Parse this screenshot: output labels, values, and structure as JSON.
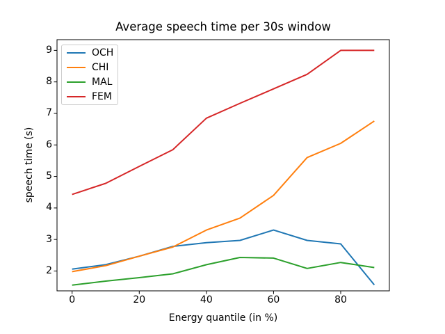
{
  "chart_data": {
    "type": "line",
    "title": "Average speech time per 30s window",
    "xlabel": "Energy quantile (in %)",
    "ylabel": "speech time (s)",
    "x": [
      0,
      10,
      20,
      30,
      40,
      50,
      60,
      70,
      80,
      90
    ],
    "series": [
      {
        "name": "OCH",
        "color": "#1f77b4",
        "values": [
          2.06,
          2.2,
          2.47,
          2.78,
          2.9,
          2.97,
          3.3,
          2.97,
          2.86,
          1.56
        ]
      },
      {
        "name": "CHI",
        "color": "#ff7f0e",
        "values": [
          1.98,
          2.17,
          2.47,
          2.76,
          3.3,
          3.68,
          4.4,
          5.6,
          6.05,
          6.76
        ]
      },
      {
        "name": "MAL",
        "color": "#2ca02c",
        "values": [
          1.55,
          1.68,
          1.79,
          1.91,
          2.2,
          2.43,
          2.41,
          2.08,
          2.27,
          2.11
        ]
      },
      {
        "name": "FEM",
        "color": "#d62728",
        "values": [
          4.43,
          4.78,
          5.32,
          5.85,
          6.85,
          7.32,
          7.78,
          8.24,
          9.0,
          9.0
        ]
      }
    ],
    "xticks": [
      0,
      20,
      40,
      60,
      80
    ],
    "yticks": [
      2,
      3,
      4,
      5,
      6,
      7,
      8,
      9
    ],
    "xlim": [
      -4.5,
      94.5
    ],
    "ylim": [
      1.37,
      9.34
    ],
    "grid": false,
    "legend_position": "upper left",
    "axis_color": "#000000",
    "spine_color": "#000000",
    "background_color": "#ffffff"
  }
}
